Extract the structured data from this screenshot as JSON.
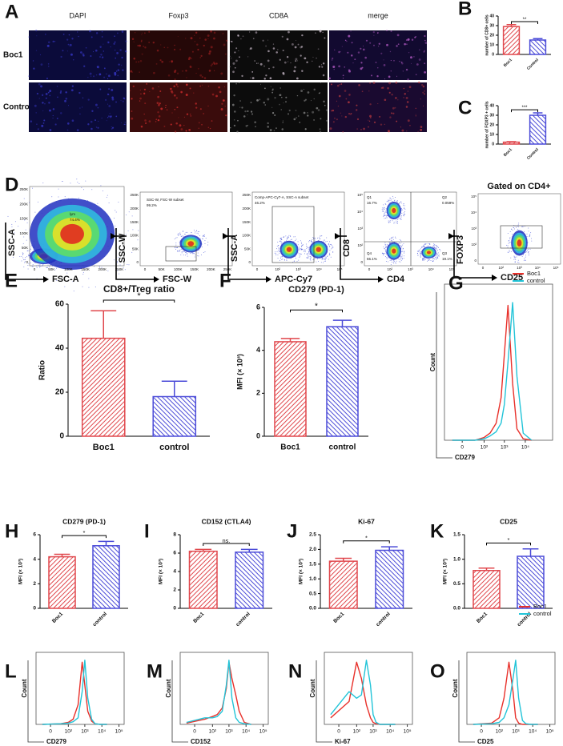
{
  "panel_labels": {
    "A": "A",
    "D": "D"
  },
  "microscopy": {
    "columns": [
      "DAPI",
      "Foxp3",
      "CD8A",
      "merge"
    ],
    "rows": [
      "Boc1",
      "Control"
    ]
  },
  "flow": {
    "title": "Gated on CD4+",
    "plots": [
      {
        "x_label": "FSC-A",
        "y_label": "SSC-A",
        "x_ticks": [
          "0",
          "50K",
          "100K",
          "150K",
          "200K",
          "250K"
        ],
        "y_ticks": [
          "0",
          "50K",
          "100K",
          "150K",
          "200K",
          "250K"
        ],
        "gate_texts": [
          "lym",
          "74.4%"
        ]
      },
      {
        "x_label": "FSC-W",
        "y_label": "SSC-W",
        "x_ticks": [
          "0",
          "50K",
          "100K",
          "150K",
          "200K",
          "250K"
        ],
        "y_ticks": [
          "0",
          "50K",
          "100K",
          "150K",
          "200K",
          "250K"
        ],
        "gate_texts": [
          "SSC-W, FSC-W subset",
          "99.2%"
        ]
      },
      {
        "x_label": "APC-Cy7",
        "y_label": "SSC-A",
        "x_ticks": [
          "0",
          "10²",
          "10³",
          "10⁴",
          "10⁵"
        ],
        "y_ticks": [
          "0",
          "50K",
          "100K",
          "150K",
          "200K",
          "250K"
        ],
        "gate_texts": [
          "Comp-APC-Cy7-A, SSC-A subset",
          "46.2%"
        ]
      },
      {
        "x_label": "CD4",
        "y_label": "CD8",
        "x_ticks": [
          "0",
          "10²",
          "10³",
          "10⁴",
          "10⁵"
        ],
        "y_ticks": [
          "0",
          "10²",
          "10³",
          "10⁴",
          "10⁵"
        ],
        "gate_texts": [
          "Q1",
          "16.7%",
          "Q2",
          "0.059%",
          "Q4",
          "55.1%",
          "Q3",
          "19.1%"
        ]
      },
      {
        "x_label": "CD25",
        "y_label": "FOXP3",
        "x_ticks": [
          "0",
          "10²",
          "10³",
          "10⁴",
          "10⁵"
        ],
        "y_ticks": [
          "0",
          "10²",
          "10³",
          "10⁴",
          "10⁵"
        ],
        "gate_texts": []
      }
    ]
  },
  "chart_data": [
    {
      "type": "bar",
      "label": "B",
      "ylabel": "number of CD8+ cells",
      "categories": [
        "Boc1",
        "Control"
      ],
      "values": [
        29,
        15
      ],
      "errors": [
        2,
        1.5
      ],
      "colors": [
        "#e0474c",
        "#4b4bd8"
      ],
      "ylim": [
        0,
        40
      ],
      "yticks": [
        0,
        10,
        20,
        30,
        40
      ],
      "significance": "**"
    },
    {
      "type": "bar",
      "label": "C",
      "ylabel": "number of FOXP3 + cells",
      "categories": [
        "Boc1",
        "Control"
      ],
      "values": [
        2,
        30
      ],
      "errors": [
        0.5,
        2.5
      ],
      "colors": [
        "#e0474c",
        "#4b4bd8"
      ],
      "ylim": [
        0,
        40
      ],
      "yticks": [
        0,
        10,
        20,
        30,
        40
      ],
      "significance": "***"
    },
    {
      "type": "bar",
      "label": "E",
      "title": "CD8+/Treg ratio",
      "ylabel": "Ratio",
      "categories": [
        "Boc1",
        "control"
      ],
      "values": [
        44.5,
        18
      ],
      "errors": [
        12.5,
        7
      ],
      "colors": [
        "#e0474c",
        "#4b4bd8"
      ],
      "ylim": [
        0,
        60
      ],
      "yticks": [
        0,
        20,
        40,
        60
      ],
      "significance": "*"
    },
    {
      "type": "bar",
      "label": "F",
      "title": "CD279 (PD-1)",
      "ylabel": "MFI (× 10³)",
      "categories": [
        "Boc1",
        "control"
      ],
      "values": [
        4.4,
        5.1
      ],
      "errors": [
        0.15,
        0.3
      ],
      "colors": [
        "#e0474c",
        "#4b4bd8"
      ],
      "ylim": [
        0,
        6
      ],
      "yticks": [
        0,
        2,
        4,
        6
      ],
      "significance": "*"
    },
    {
      "type": "line",
      "label": "G",
      "xlabel": "CD279",
      "ylabel": "Count",
      "xscale": "symlog",
      "x": [
        -20,
        30,
        100,
        200,
        400,
        700,
        1000,
        1500,
        2500,
        4000,
        8000,
        20000
      ],
      "series": [
        {
          "name": "Boc1",
          "color": "#e8302a",
          "values": [
            0,
            0,
            2,
            5,
            12,
            30,
            60,
            95,
            40,
            8,
            1,
            0
          ]
        },
        {
          "name": "control",
          "color": "#22c4d8",
          "values": [
            0,
            0,
            1,
            3,
            6,
            12,
            25,
            55,
            97,
            45,
            5,
            0
          ]
        }
      ],
      "xlim": [
        -60,
        200000
      ],
      "xticks": [
        0,
        {
          "value": 100,
          "label": "10²"
        },
        {
          "value": 1000,
          "label": "10³"
        },
        {
          "value": 10000,
          "label": "10⁴"
        }
      ],
      "ylim": [
        0,
        110
      ],
      "legend": "top-right"
    },
    {
      "type": "bar",
      "label": "H",
      "title": "CD279 (PD-1)",
      "ylabel": "MFI (× 10³)",
      "categories": [
        "Boc1",
        "control"
      ],
      "values": [
        4.2,
        5.1
      ],
      "errors": [
        0.2,
        0.35
      ],
      "colors": [
        "#e0474c",
        "#4b4bd8"
      ],
      "ylim": [
        0,
        6
      ],
      "yticks": [
        0,
        2,
        4,
        6
      ],
      "significance": "*"
    },
    {
      "type": "bar",
      "label": "I",
      "title": "CD152 (CTLA4)",
      "ylabel": "MFI (× 10³)",
      "categories": [
        "Boc1",
        "control"
      ],
      "values": [
        6.2,
        6.1
      ],
      "errors": [
        0.2,
        0.3
      ],
      "colors": [
        "#e0474c",
        "#4b4bd8"
      ],
      "ylim": [
        0,
        8
      ],
      "yticks": [
        0,
        2,
        4,
        6,
        8
      ],
      "significance": "ns."
    },
    {
      "type": "bar",
      "label": "J",
      "title": "Ki-67",
      "ylabel": "MFI (× 10³)",
      "categories": [
        "Boc1",
        "control"
      ],
      "values": [
        1.6,
        1.97
      ],
      "errors": [
        0.1,
        0.12
      ],
      "colors": [
        "#e0474c",
        "#4b4bd8"
      ],
      "ylim": [
        0,
        2.5
      ],
      "yticks": [
        {
          "value": 0,
          "label": "0.0"
        },
        0.5,
        {
          "value": 1,
          "label": "1.0"
        },
        1.5,
        {
          "value": 2,
          "label": "2.0"
        },
        2.5
      ],
      "significance": "*"
    },
    {
      "type": "bar",
      "label": "K",
      "title": "CD25",
      "ylabel": "MFI (× 10³)",
      "categories": [
        "Boc1",
        "control"
      ],
      "values": [
        0.77,
        1.06
      ],
      "errors": [
        0.05,
        0.15
      ],
      "colors": [
        "#e0474c",
        "#4b4bd8"
      ],
      "ylim": [
        0,
        1.5
      ],
      "yticks": [
        {
          "value": 0,
          "label": "0.0"
        },
        0.5,
        {
          "value": 1,
          "label": "1.0"
        },
        1.5
      ],
      "significance": "*"
    },
    {
      "type": "line",
      "label": "L",
      "xlabel": "CD279",
      "ylabel": "Count",
      "xscale": "symlog",
      "x": [
        -20,
        30,
        100,
        200,
        400,
        700,
        1000,
        1500,
        2500,
        4000,
        8000,
        20000
      ],
      "series": [
        {
          "name": "Boc1",
          "color": "#e8302a",
          "values": [
            0,
            1,
            3,
            8,
            30,
            95,
            60,
            20,
            5,
            1,
            0,
            0
          ]
        },
        {
          "name": "control",
          "color": "#22c4d8",
          "values": [
            0,
            1,
            2,
            4,
            10,
            50,
            98,
            40,
            8,
            1,
            0,
            0
          ]
        }
      ],
      "xlim": [
        -60,
        200000
      ],
      "xticks": [
        0,
        {
          "value": 100,
          "label": "10²"
        },
        {
          "value": 1000,
          "label": "10³"
        },
        {
          "value": 10000,
          "label": "10⁴"
        },
        {
          "value": 100000,
          "label": "10⁵"
        }
      ],
      "ylim": [
        0,
        110
      ]
    },
    {
      "type": "line",
      "label": "M",
      "xlabel": "CD152",
      "ylabel": "Count",
      "xscale": "symlog",
      "x": [
        -20,
        30,
        100,
        200,
        400,
        700,
        1000,
        1500,
        2500,
        4000,
        8000,
        20000
      ],
      "series": [
        {
          "name": "Boc1",
          "color": "#e8302a",
          "values": [
            2,
            8,
            12,
            15,
            25,
            55,
            95,
            70,
            45,
            20,
            3,
            0
          ]
        },
        {
          "name": "control",
          "color": "#22c4d8",
          "values": [
            3,
            10,
            10,
            12,
            20,
            60,
            98,
            40,
            10,
            3,
            1,
            0
          ]
        }
      ],
      "xlim": [
        -60,
        200000
      ],
      "xticks": [
        0,
        {
          "value": 100,
          "label": "10²"
        },
        {
          "value": 1000,
          "label": "10³"
        },
        {
          "value": 10000,
          "label": "10⁴"
        },
        {
          "value": 100000,
          "label": "10⁵"
        }
      ],
      "ylim": [
        0,
        110
      ]
    },
    {
      "type": "line",
      "label": "N",
      "xlabel": "Ki-67",
      "ylabel": "Count",
      "xscale": "symlog",
      "x": [
        -20,
        30,
        100,
        200,
        400,
        700,
        1000,
        1500,
        2500,
        4000,
        8000,
        20000
      ],
      "series": [
        {
          "name": "Boc1",
          "color": "#e8302a",
          "values": [
            10,
            35,
            95,
            70,
            30,
            10,
            3,
            1,
            0,
            0,
            0,
            0
          ]
        },
        {
          "name": "control",
          "color": "#22c4d8",
          "values": [
            15,
            50,
            40,
            45,
            98,
            60,
            15,
            3,
            0,
            0,
            0,
            0
          ]
        }
      ],
      "xlim": [
        -60,
        200000
      ],
      "xticks": [
        0,
        {
          "value": 100,
          "label": "10²"
        },
        {
          "value": 1000,
          "label": "10³"
        },
        {
          "value": 10000,
          "label": "10⁴"
        },
        {
          "value": 100000,
          "label": "10⁵"
        }
      ],
      "ylim": [
        0,
        110
      ]
    },
    {
      "type": "line",
      "label": "O",
      "xlabel": "CD25",
      "ylabel": "Count",
      "xscale": "symlog",
      "x": [
        -20,
        30,
        100,
        200,
        400,
        700,
        1000,
        1500,
        2500,
        4000,
        8000,
        20000
      ],
      "series": [
        {
          "name": "Boc1",
          "color": "#e8302a",
          "values": [
            0,
            2,
            10,
            40,
            95,
            50,
            10,
            2,
            0,
            0,
            0,
            0
          ]
        },
        {
          "name": "control",
          "color": "#22c4d8",
          "values": [
            0,
            1,
            3,
            10,
            30,
            70,
            98,
            40,
            6,
            1,
            0,
            0
          ]
        }
      ],
      "xlim": [
        -60,
        200000
      ],
      "xticks": [
        0,
        {
          "value": 100,
          "label": "10²"
        },
        {
          "value": 1000,
          "label": "10³"
        },
        {
          "value": 10000,
          "label": "10⁴"
        },
        {
          "value": 100000,
          "label": "10⁵"
        }
      ],
      "ylim": [
        0,
        110
      ],
      "legend": "top-right"
    }
  ]
}
